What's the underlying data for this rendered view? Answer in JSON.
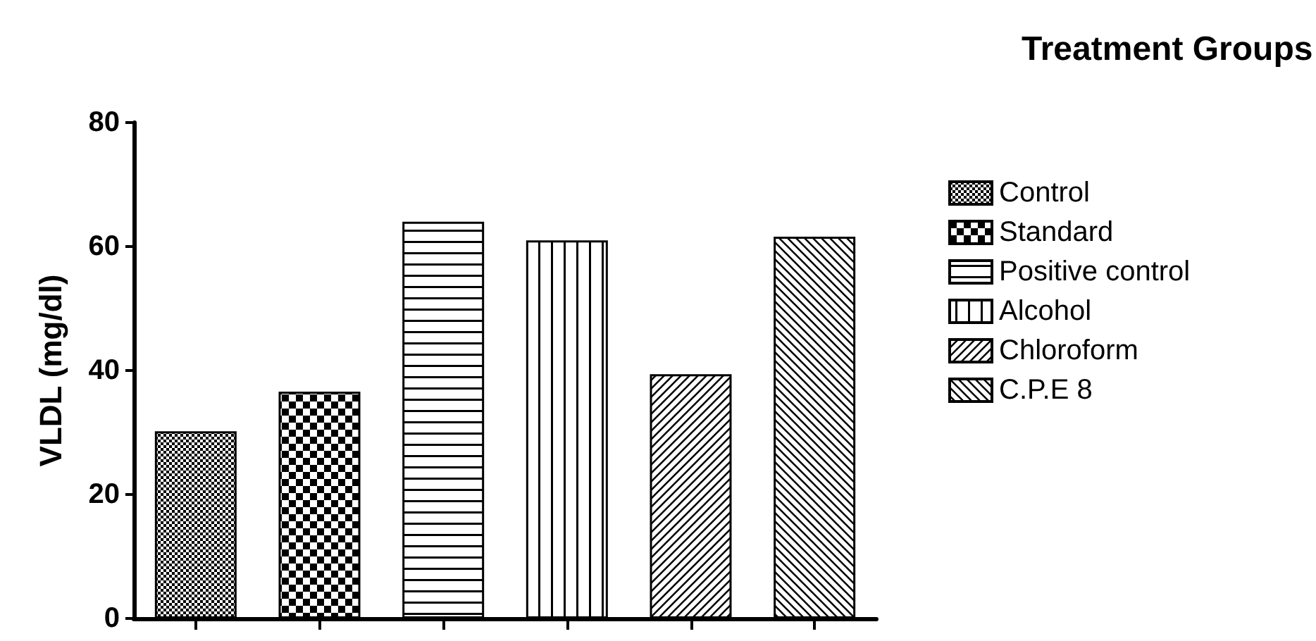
{
  "chart_data": {
    "type": "bar",
    "ylabel": "VLDL (mg/dl)",
    "legend_title": "Treatment Groups",
    "categories": [
      null,
      null,
      null,
      null,
      null,
      null
    ],
    "series": [
      {
        "name": "Control",
        "color": "#000000",
        "values": [
          30.2,
          null,
          null,
          null,
          null,
          null
        ]
      },
      {
        "name": "Standard",
        "color": "#000000",
        "values": [
          null,
          36.6,
          null,
          null,
          null,
          null
        ]
      },
      {
        "name": "Positive control",
        "color": "#000000",
        "values": [
          null,
          null,
          64,
          null,
          null,
          null
        ]
      },
      {
        "name": "Alcohol",
        "color": "#000000",
        "values": [
          null,
          null,
          null,
          61,
          null,
          null
        ]
      },
      {
        "name": "Chloroform",
        "color": "#000000",
        "values": [
          null,
          null,
          null,
          null,
          39.4,
          null
        ]
      },
      {
        "name": "C.P.E 8",
        "color": "#000000",
        "values": [
          null,
          null,
          null,
          null,
          null,
          61.6
        ]
      }
    ],
    "ylim": [
      0,
      80
    ],
    "yticks": [
      0,
      20,
      40,
      60,
      80
    ],
    "grid": false,
    "legend": "right",
    "tick_labels": "y"
  }
}
